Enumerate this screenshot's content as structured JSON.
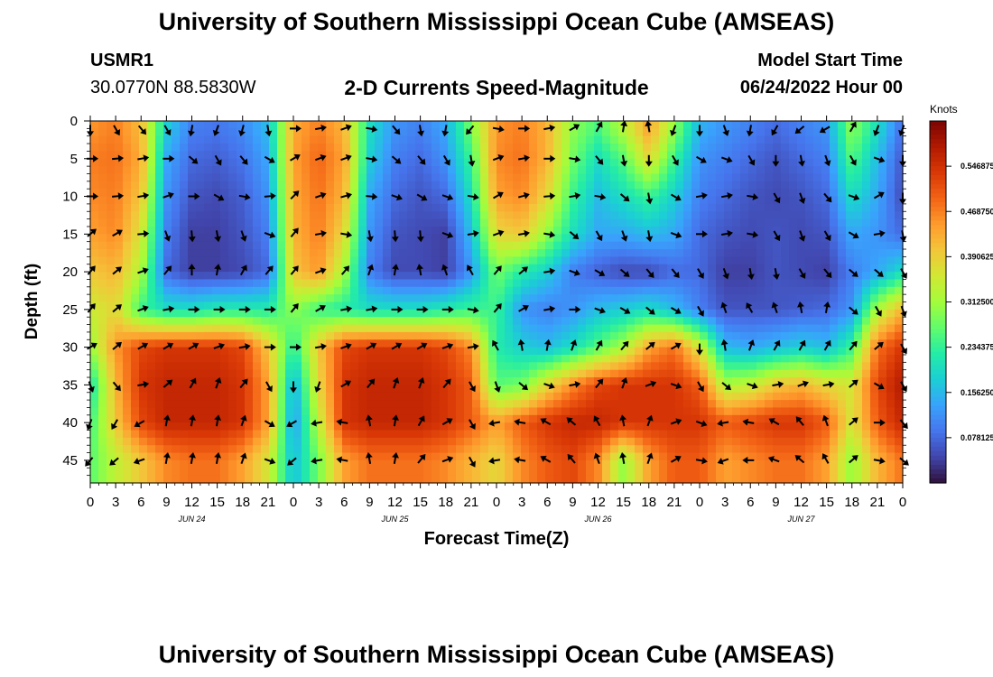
{
  "title": "University of Southern Mississippi Ocean Cube (AMSEAS)",
  "title_repeat": "University of Southern Mississippi Ocean Cube (AMSEAS)",
  "station": {
    "id": "USMR1",
    "coords": "30.0770N  88.5830W"
  },
  "model": {
    "label": "Model Start Time",
    "start": "06/24/2022 Hour 00"
  },
  "chart_data": {
    "type": "heatmap",
    "title": "2-D Currents Speed-Magnitude",
    "xlabel": "Forecast Time(Z)",
    "ylabel": "Depth (ft)",
    "x_range_hours": [
      0,
      96
    ],
    "y_range_ft": [
      0,
      48
    ],
    "x_ticks": [
      "0",
      "3",
      "6",
      "9",
      "12",
      "15",
      "18",
      "21",
      "0",
      "3",
      "6",
      "9",
      "12",
      "15",
      "18",
      "21",
      "0",
      "3",
      "6",
      "9",
      "12",
      "15",
      "18",
      "21",
      "0",
      "3",
      "6",
      "9",
      "12",
      "15",
      "18",
      "21",
      "0"
    ],
    "y_ticks": [
      "0",
      "5",
      "10",
      "15",
      "20",
      "25",
      "30",
      "35",
      "40",
      "45"
    ],
    "date_labels": [
      "JUN 24",
      "JUN 25",
      "JUN 26",
      "JUN 27"
    ],
    "colorbar": {
      "unit": "Knots",
      "ticks": [
        "0.546875",
        "0.468750",
        "0.390625",
        "0.312500",
        "0.234375",
        "0.156250",
        "0.078125"
      ],
      "range": [
        0,
        0.625
      ],
      "colors": [
        "#30123b",
        "#4145ab",
        "#4675ed",
        "#39a2fc",
        "#1bcfd4",
        "#24eca6",
        "#61fc6c",
        "#a4fc3b",
        "#d1e834",
        "#f3c63a",
        "#fe9b2d",
        "#f36315",
        "#d93806",
        "#b11901",
        "#7a0402"
      ]
    },
    "speed_field": {
      "depths_ft": [
        1,
        5,
        10,
        15,
        20,
        25,
        30,
        35,
        40,
        45
      ],
      "hours": [
        0,
        3,
        6,
        9,
        12,
        15,
        18,
        21,
        24,
        27,
        30,
        33,
        36,
        39,
        42,
        45,
        48,
        51,
        54,
        57,
        60,
        63,
        66,
        69,
        72,
        75,
        78,
        81,
        84,
        87,
        90,
        93,
        96
      ],
      "values_kn": [
        [
          0.45,
          0.47,
          0.41,
          0.18,
          0.1,
          0.09,
          0.11,
          0.16,
          0.43,
          0.47,
          0.42,
          0.2,
          0.12,
          0.1,
          0.14,
          0.28,
          0.45,
          0.47,
          0.42,
          0.3,
          0.25,
          0.33,
          0.44,
          0.3,
          0.15,
          0.12,
          0.1,
          0.08,
          0.1,
          0.12,
          0.3,
          0.2,
          0.08
        ],
        [
          0.47,
          0.48,
          0.43,
          0.14,
          0.08,
          0.07,
          0.09,
          0.14,
          0.44,
          0.49,
          0.44,
          0.18,
          0.1,
          0.08,
          0.12,
          0.24,
          0.46,
          0.48,
          0.42,
          0.28,
          0.2,
          0.26,
          0.38,
          0.24,
          0.12,
          0.1,
          0.08,
          0.06,
          0.08,
          0.1,
          0.26,
          0.16,
          0.06
        ],
        [
          0.46,
          0.47,
          0.4,
          0.12,
          0.06,
          0.05,
          0.07,
          0.12,
          0.43,
          0.48,
          0.42,
          0.14,
          0.08,
          0.06,
          0.08,
          0.2,
          0.44,
          0.46,
          0.38,
          0.24,
          0.16,
          0.2,
          0.24,
          0.18,
          0.1,
          0.08,
          0.06,
          0.05,
          0.06,
          0.08,
          0.2,
          0.14,
          0.05
        ],
        [
          0.44,
          0.46,
          0.36,
          0.1,
          0.04,
          0.04,
          0.06,
          0.1,
          0.42,
          0.47,
          0.38,
          0.12,
          0.06,
          0.05,
          0.04,
          0.16,
          0.38,
          0.4,
          0.3,
          0.2,
          0.14,
          0.14,
          0.16,
          0.14,
          0.08,
          0.06,
          0.05,
          0.06,
          0.05,
          0.06,
          0.14,
          0.12,
          0.08
        ],
        [
          0.4,
          0.42,
          0.32,
          0.08,
          0.04,
          0.04,
          0.05,
          0.08,
          0.4,
          0.45,
          0.32,
          0.1,
          0.05,
          0.05,
          0.04,
          0.12,
          0.28,
          0.22,
          0.18,
          0.1,
          0.07,
          0.05,
          0.05,
          0.08,
          0.08,
          0.04,
          0.04,
          0.06,
          0.05,
          0.04,
          0.1,
          0.14,
          0.2
        ],
        [
          0.35,
          0.38,
          0.24,
          0.2,
          0.2,
          0.22,
          0.22,
          0.22,
          0.3,
          0.24,
          0.22,
          0.2,
          0.2,
          0.2,
          0.22,
          0.24,
          0.24,
          0.12,
          0.1,
          0.12,
          0.16,
          0.18,
          0.2,
          0.16,
          0.1,
          0.06,
          0.06,
          0.06,
          0.07,
          0.08,
          0.12,
          0.32,
          0.42
        ],
        [
          0.3,
          0.45,
          0.52,
          0.54,
          0.54,
          0.54,
          0.52,
          0.4,
          0.22,
          0.4,
          0.52,
          0.54,
          0.54,
          0.54,
          0.52,
          0.46,
          0.22,
          0.18,
          0.16,
          0.2,
          0.26,
          0.32,
          0.44,
          0.48,
          0.36,
          0.16,
          0.14,
          0.16,
          0.18,
          0.16,
          0.24,
          0.48,
          0.54
        ],
        [
          0.2,
          0.42,
          0.54,
          0.56,
          0.56,
          0.56,
          0.54,
          0.44,
          0.14,
          0.38,
          0.54,
          0.56,
          0.56,
          0.56,
          0.54,
          0.5,
          0.26,
          0.28,
          0.38,
          0.46,
          0.52,
          0.54,
          0.54,
          0.54,
          0.5,
          0.32,
          0.34,
          0.4,
          0.42,
          0.38,
          0.36,
          0.52,
          0.58
        ],
        [
          0.24,
          0.4,
          0.52,
          0.56,
          0.56,
          0.56,
          0.54,
          0.44,
          0.12,
          0.34,
          0.54,
          0.56,
          0.56,
          0.56,
          0.54,
          0.5,
          0.44,
          0.5,
          0.54,
          0.56,
          0.56,
          0.54,
          0.54,
          0.54,
          0.54,
          0.5,
          0.52,
          0.54,
          0.54,
          0.5,
          0.36,
          0.5,
          0.56
        ],
        [
          0.26,
          0.34,
          0.4,
          0.46,
          0.48,
          0.48,
          0.44,
          0.36,
          0.16,
          0.28,
          0.44,
          0.48,
          0.48,
          0.48,
          0.46,
          0.42,
          0.38,
          0.46,
          0.5,
          0.52,
          0.46,
          0.3,
          0.44,
          0.5,
          0.5,
          0.44,
          0.46,
          0.48,
          0.48,
          0.44,
          0.3,
          0.42,
          0.48
        ]
      ]
    },
    "vector_field": {
      "depths_ft": [
        1,
        5,
        10,
        15,
        20,
        25,
        30,
        35,
        40,
        45
      ],
      "hours": [
        0,
        3,
        6,
        9,
        12,
        15,
        18,
        21,
        24,
        27,
        30,
        33,
        36,
        39,
        42,
        45,
        48,
        51,
        54,
        57,
        60,
        63,
        66,
        69,
        72,
        75,
        78,
        81,
        84,
        87,
        90,
        93,
        96
      ],
      "direction_deg": [
        [
          180,
          150,
          140,
          150,
          190,
          200,
          195,
          170,
          90,
          80,
          70,
          100,
          140,
          170,
          190,
          220,
          100,
          90,
          80,
          60,
          30,
          10,
          350,
          200,
          180,
          160,
          190,
          210,
          230,
          240,
          30,
          200,
          200
        ],
        [
          90,
          85,
          80,
          90,
          130,
          150,
          140,
          120,
          60,
          70,
          70,
          100,
          130,
          140,
          150,
          170,
          70,
          80,
          90,
          100,
          140,
          170,
          180,
          150,
          120,
          110,
          150,
          180,
          170,
          160,
          150,
          110,
          180
        ],
        [
          90,
          85,
          80,
          70,
          90,
          120,
          100,
          85,
          45,
          70,
          75,
          95,
          110,
          120,
          110,
          100,
          60,
          75,
          85,
          80,
          100,
          130,
          170,
          120,
          80,
          80,
          100,
          150,
          160,
          140,
          110,
          60,
          180
        ],
        [
          50,
          60,
          85,
          160,
          175,
          170,
          160,
          110,
          40,
          80,
          100,
          170,
          175,
          175,
          110,
          80,
          70,
          80,
          100,
          130,
          150,
          160,
          170,
          110,
          90,
          80,
          100,
          150,
          160,
          150,
          120,
          80,
          170
        ],
        [
          40,
          50,
          70,
          40,
          0,
          10,
          30,
          40,
          40,
          70,
          40,
          20,
          10,
          350,
          340,
          330,
          40,
          50,
          80,
          110,
          120,
          130,
          140,
          140,
          150,
          160,
          170,
          170,
          150,
          140,
          130,
          130,
          150
        ],
        [
          40,
          50,
          70,
          80,
          90,
          90,
          90,
          90,
          40,
          60,
          80,
          80,
          90,
          90,
          90,
          100,
          40,
          60,
          80,
          90,
          110,
          120,
          130,
          120,
          150,
          340,
          330,
          340,
          350,
          10,
          130,
          150,
          160
        ],
        [
          60,
          50,
          60,
          60,
          60,
          70,
          80,
          90,
          90,
          80,
          70,
          60,
          60,
          60,
          70,
          80,
          330,
          350,
          10,
          20,
          30,
          40,
          50,
          60,
          180,
          350,
          20,
          30,
          30,
          30,
          40,
          50,
          150
        ],
        [
          160,
          140,
          80,
          50,
          30,
          20,
          40,
          150,
          180,
          200,
          60,
          40,
          20,
          20,
          40,
          150,
          160,
          130,
          110,
          80,
          40,
          20,
          70,
          110,
          150,
          130,
          110,
          80,
          70,
          80,
          50,
          120,
          150
        ],
        [
          200,
          210,
          240,
          10,
          10,
          10,
          20,
          120,
          240,
          260,
          280,
          350,
          10,
          30,
          60,
          150,
          260,
          280,
          300,
          310,
          330,
          350,
          20,
          70,
          110,
          260,
          280,
          300,
          320,
          340,
          50,
          90,
          140
        ],
        [
          220,
          230,
          250,
          10,
          10,
          10,
          20,
          110,
          230,
          260,
          280,
          350,
          10,
          40,
          70,
          150,
          260,
          280,
          300,
          320,
          340,
          350,
          20,
          60,
          100,
          250,
          270,
          290,
          310,
          330,
          50,
          100,
          130
        ]
      ]
    }
  }
}
